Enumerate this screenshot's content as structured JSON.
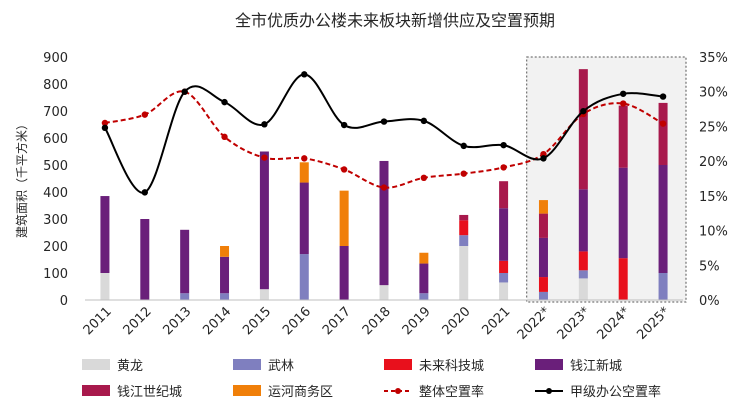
{
  "chart_data": {
    "type": "bar",
    "title": "全市优质办公楼未来板块新增供应及空置预期",
    "ylabel": "建筑面积（千平方米）",
    "categories": [
      "2011",
      "2012",
      "2013",
      "2014",
      "2015",
      "2016",
      "2017",
      "2018",
      "2019",
      "2020",
      "2021",
      "2022*",
      "2023*",
      "2024*",
      "2025*"
    ],
    "ylim": [
      0,
      900
    ],
    "yticks": [
      0,
      100,
      200,
      300,
      400,
      500,
      600,
      700,
      800,
      900
    ],
    "y2lim": [
      0,
      0.35
    ],
    "y2ticks": [
      0,
      0.05,
      0.1,
      0.15,
      0.2,
      0.25,
      0.3,
      0.35
    ],
    "y2tick_labels": [
      "0%",
      "5%",
      "10%",
      "15%",
      "20%",
      "25%",
      "30%",
      "35%"
    ],
    "forecast_start_index": 11,
    "series": [
      {
        "name": "黄龙",
        "kind": "bar",
        "color": "#d9d9d9",
        "values": [
          100,
          0,
          0,
          0,
          40,
          0,
          0,
          55,
          0,
          200,
          65,
          0,
          80,
          0,
          0
        ]
      },
      {
        "name": "武林",
        "kind": "bar",
        "color": "#7f7fbf",
        "values": [
          0,
          0,
          25,
          25,
          0,
          170,
          0,
          0,
          25,
          40,
          35,
          30,
          30,
          0,
          100
        ]
      },
      {
        "name": "未来科技城",
        "kind": "bar",
        "color": "#e8101c",
        "values": [
          0,
          0,
          0,
          0,
          0,
          0,
          0,
          0,
          0,
          55,
          45,
          55,
          70,
          155,
          0
        ]
      },
      {
        "name": "钱江新城",
        "kind": "bar",
        "color": "#6a1f7a",
        "values": [
          285,
          300,
          235,
          135,
          510,
          265,
          200,
          460,
          110,
          0,
          195,
          145,
          230,
          335,
          400
        ]
      },
      {
        "name": "钱江世纪城",
        "kind": "bar",
        "color": "#a8194c",
        "values": [
          0,
          0,
          0,
          0,
          0,
          0,
          0,
          0,
          0,
          20,
          100,
          90,
          445,
          230,
          230
        ]
      },
      {
        "name": "运河商务区",
        "kind": "bar",
        "color": "#f07f09",
        "values": [
          0,
          0,
          0,
          40,
          0,
          75,
          205,
          0,
          40,
          0,
          0,
          50,
          0,
          0,
          0
        ]
      },
      {
        "name": "整体空置率",
        "kind": "line",
        "style": "dashed",
        "color": "#c00000",
        "values": [
          0.255,
          0.267,
          0.3,
          0.235,
          0.205,
          0.204,
          0.188,
          0.162,
          0.176,
          0.182,
          0.191,
          0.21,
          0.268,
          0.283,
          0.254
        ]
      },
      {
        "name": "甲级办公空置率",
        "kind": "line",
        "style": "solid",
        "color": "#000000",
        "values": [
          0.248,
          0.155,
          0.3,
          0.285,
          0.253,
          0.325,
          0.252,
          0.257,
          0.258,
          0.222,
          0.223,
          0.204,
          0.272,
          0.297,
          0.293
        ]
      }
    ],
    "legend_position": "bottom",
    "grid": false
  }
}
